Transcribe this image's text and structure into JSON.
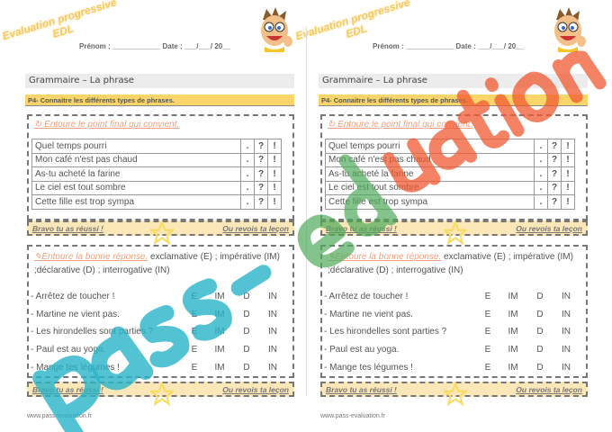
{
  "header": {
    "watermark_line1": "Evaluation progressive",
    "watermark_line2": "EDL",
    "identity": "Prénom : ____________  Date : ___/___/ 20__"
  },
  "title": "Grammaire – La phrase",
  "objective": "P4- Connaitre les différents types de phrases.",
  "exercise1": {
    "instruction": "Entoure le point final qui convient.",
    "icon": "refresh-icon",
    "choices": [
      ".",
      "?",
      "!"
    ],
    "rows": [
      "Quel temps pourri",
      "Mon café n'est pas chaud",
      "As-tu acheté la farine",
      "Le ciel est tout sombre",
      "Cette fille est trop sympa"
    ]
  },
  "feedback": {
    "success": "Bravo tu as réussi !",
    "retry": "Ou revois ta leçon"
  },
  "exercise2": {
    "instruction": "Entoure la bonne réponse.",
    "icon": "pencil-icon",
    "types": " exclamative (E) ; impérative (IM) ;déclarative (D) ; interrogative (IN)",
    "choices": [
      "E",
      "IM",
      "D",
      "IN"
    ],
    "rows": [
      "- Arrêtez de toucher !",
      "- Martine ne vient pas.",
      "- Les hirondelles sont parties ?",
      "- Paul est au yoga.",
      "- Mange tes légumes !"
    ]
  },
  "footer": "www.pass-evaluation.fr",
  "watermark": {
    "part1": "pass-",
    "part2": "ed",
    "part3": "uation"
  },
  "colors": {
    "objective_bar": "#f9d56a",
    "feedback_bar": "#fbe7b8",
    "instruction": "#f0a080",
    "star": "#f9dc60"
  }
}
